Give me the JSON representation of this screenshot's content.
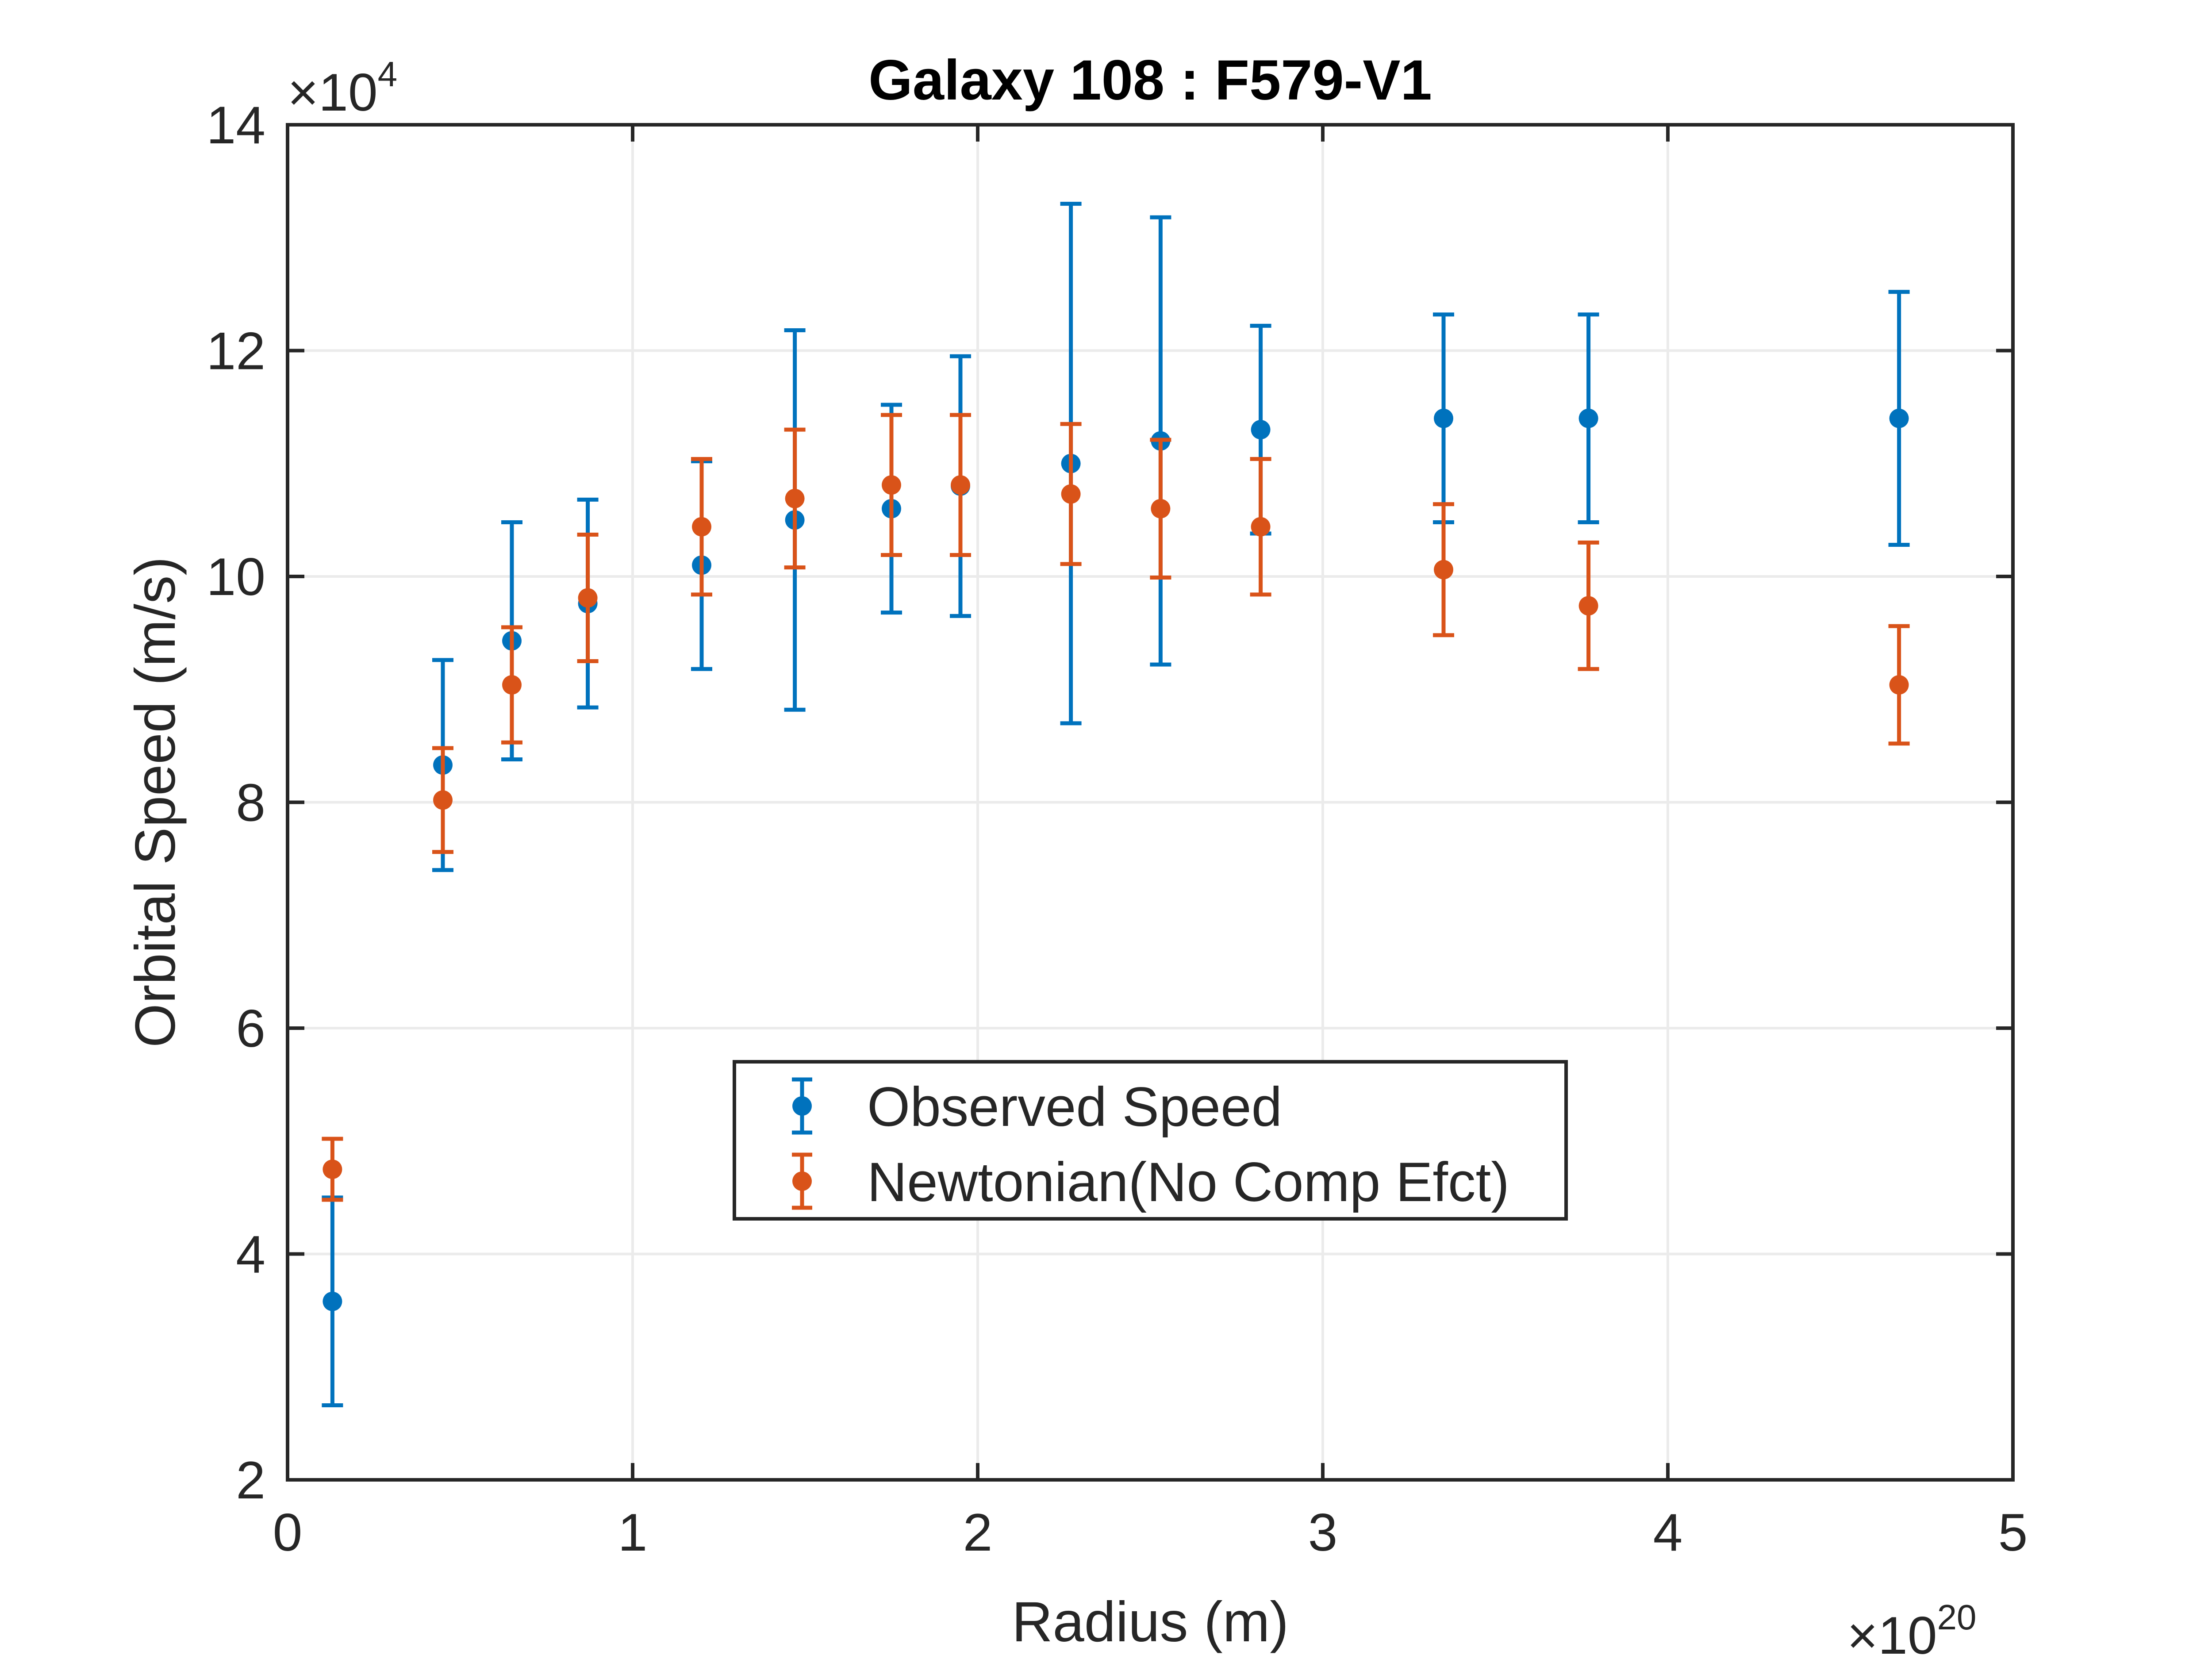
{
  "chart_data": {
    "type": "scatter",
    "title": "Galaxy 108 : F579-V1",
    "xlabel": "Radius (m)",
    "ylabel": "Orbital Speed (m/s)",
    "x_exponent_label": "×10",
    "x_exponent_power": "20",
    "y_exponent_label": "×10",
    "y_exponent_power": "4",
    "xlim": [
      0,
      5
    ],
    "ylim": [
      2,
      14
    ],
    "x_ticks": [
      0,
      1,
      2,
      3,
      4,
      5
    ],
    "x_tick_labels": [
      "0",
      "1",
      "2",
      "3",
      "4",
      "5"
    ],
    "y_ticks": [
      2,
      4,
      6,
      8,
      10,
      12,
      14
    ],
    "y_tick_labels": [
      "2",
      "4",
      "6",
      "8",
      "10",
      "12",
      "14"
    ],
    "grid": true,
    "legend_position": "center-bottom",
    "series": [
      {
        "name": "Observed Speed",
        "color": "#0072BD",
        "x": [
          0.13,
          0.45,
          0.65,
          0.87,
          1.2,
          1.47,
          1.75,
          1.95,
          2.27,
          2.53,
          2.82,
          3.35,
          3.77,
          4.67
        ],
        "y": [
          3.58,
          8.33,
          9.43,
          9.76,
          10.1,
          10.5,
          10.6,
          10.8,
          11.0,
          11.2,
          11.3,
          11.4,
          11.4,
          11.4
        ],
        "err": [
          0.92,
          0.93,
          1.05,
          0.92,
          0.92,
          1.68,
          0.92,
          1.15,
          2.3,
          1.98,
          0.92,
          0.92,
          0.92,
          1.12
        ]
      },
      {
        "name": "Newtonian(No Comp Efct)",
        "color": "#D95319",
        "x": [
          0.13,
          0.45,
          0.65,
          0.87,
          1.2,
          1.47,
          1.75,
          1.95,
          2.27,
          2.53,
          2.82,
          3.35,
          3.77,
          4.67
        ],
        "y": [
          4.75,
          8.02,
          9.04,
          9.81,
          10.44,
          10.69,
          10.81,
          10.81,
          10.73,
          10.6,
          10.44,
          10.06,
          9.74,
          9.04
        ],
        "err": [
          0.27,
          0.46,
          0.51,
          0.56,
          0.6,
          0.61,
          0.62,
          0.62,
          0.62,
          0.61,
          0.6,
          0.58,
          0.56,
          0.52
        ]
      }
    ]
  }
}
